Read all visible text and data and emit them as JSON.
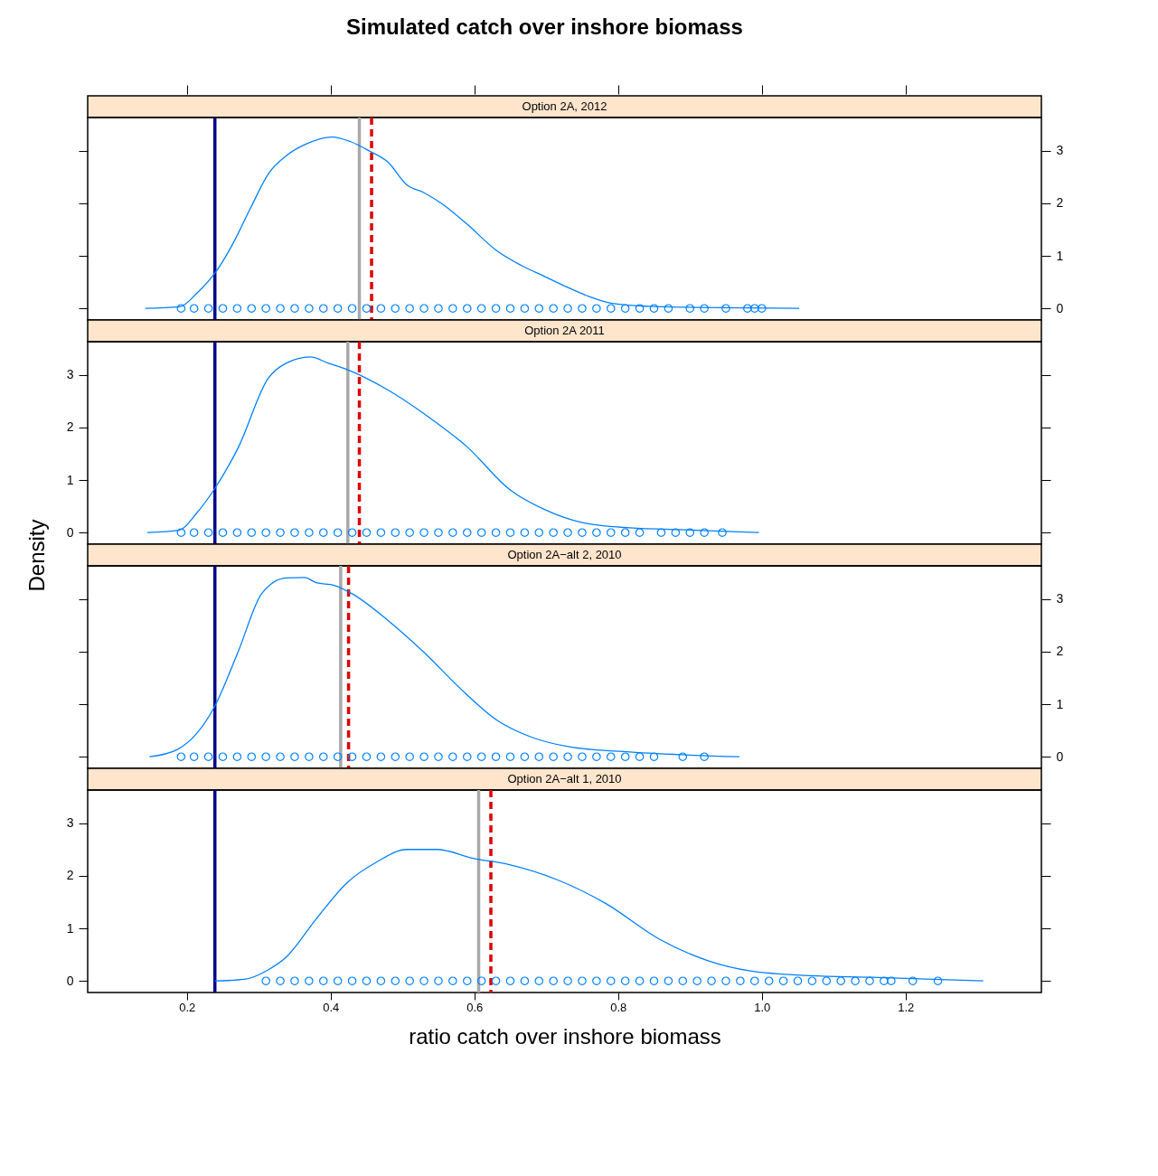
{
  "chart_data": [
    {
      "type": "line",
      "title": "Simulated catch over inshore biomass",
      "subtitle": "Option 2A, 2012",
      "xlim": [
        0.062,
        1.389
      ],
      "ylim": [
        -0.22,
        3.63
      ],
      "xticks": [
        {
          "value": 0.2,
          "label": null
        },
        {
          "value": 0.4,
          "label": null
        },
        {
          "value": 0.6,
          "label": null
        },
        {
          "value": 0.8,
          "label": null
        },
        {
          "value": 1.0,
          "label": null
        },
        {
          "value": 1.2,
          "label": null
        }
      ],
      "yticks": [
        0,
        1,
        2,
        3
      ],
      "tick_labels": "y",
      "series": [
        {
          "type": "line",
          "color": "#0080ff",
          "x": [
            0.142,
            0.19,
            0.214,
            0.239,
            0.264,
            0.289,
            0.314,
            0.34,
            0.365,
            0.402,
            0.428,
            0.453,
            0.48,
            0.506,
            0.53,
            0.556,
            0.59,
            0.631,
            0.665,
            0.699,
            0.73,
            0.757,
            0.79,
            0.843,
            0.906,
            1.052
          ],
          "values": [
            0,
            0.03,
            0.29,
            0.67,
            1.23,
            1.92,
            2.57,
            2.92,
            3.12,
            3.26,
            3.17,
            3.0,
            2.78,
            2.35,
            2.2,
            1.98,
            1.6,
            1.1,
            0.82,
            0.6,
            0.4,
            0.24,
            0.1,
            0.04,
            0.02,
            0
          ]
        },
        {
          "type": "scatter",
          "marker": "circle",
          "color": "#0080ff",
          "x": [
            0.192,
            0.21,
            0.23,
            0.25,
            0.27,
            0.29,
            0.31,
            0.33,
            0.35,
            0.37,
            0.39,
            0.41,
            0.43,
            0.45,
            0.47,
            0.49,
            0.51,
            0.53,
            0.55,
            0.57,
            0.59,
            0.61,
            0.63,
            0.65,
            0.67,
            0.69,
            0.71,
            0.73,
            0.75,
            0.77,
            0.79,
            0.81,
            0.83,
            0.85,
            0.87,
            0.9,
            0.92,
            0.95,
            0.98,
            0.99,
            1.0
          ],
          "values": [
            0,
            0,
            0,
            0,
            0,
            0,
            0,
            0,
            0,
            0,
            0,
            0,
            0,
            0,
            0,
            0,
            0,
            0,
            0,
            0,
            0,
            0,
            0,
            0,
            0,
            0,
            0,
            0,
            0,
            0,
            0,
            0,
            0,
            0,
            0,
            0,
            0,
            0,
            0,
            0,
            0
          ]
        }
      ],
      "ref_lines": [
        {
          "axis": "x",
          "value": 0.239,
          "color": "#00008b",
          "line_style": "solid"
        },
        {
          "axis": "x",
          "value": 0.44,
          "color": "#a9a9a9",
          "line_style": "solid"
        },
        {
          "axis": "x",
          "value": 0.457,
          "color": "#dd0000",
          "line_style": "dashed"
        }
      ]
    },
    {
      "type": "line",
      "subtitle": "Option 2A 2011",
      "ylabel": "Density",
      "xlim": [
        0.062,
        1.389
      ],
      "ylim": [
        -0.22,
        3.63
      ],
      "yticks": [
        0,
        1,
        2,
        3
      ],
      "tick_labels": "y",
      "series": [
        {
          "type": "line",
          "color": "#0080ff",
          "x": [
            0.145,
            0.19,
            0.213,
            0.238,
            0.272,
            0.313,
            0.338,
            0.372,
            0.397,
            0.423,
            0.48,
            0.531,
            0.59,
            0.649,
            0.699,
            0.75,
            0.816,
            0.9,
            0.996
          ],
          "values": [
            0,
            0.05,
            0.36,
            0.82,
            1.63,
            2.93,
            3.22,
            3.34,
            3.22,
            3.1,
            2.71,
            2.25,
            1.63,
            0.82,
            0.43,
            0.19,
            0.09,
            0.05,
            0
          ]
        },
        {
          "type": "scatter",
          "marker": "circle",
          "color": "#0080ff",
          "x": [
            0.192,
            0.21,
            0.23,
            0.25,
            0.27,
            0.29,
            0.31,
            0.33,
            0.35,
            0.37,
            0.39,
            0.41,
            0.43,
            0.45,
            0.47,
            0.49,
            0.51,
            0.53,
            0.55,
            0.57,
            0.59,
            0.61,
            0.63,
            0.65,
            0.67,
            0.69,
            0.71,
            0.73,
            0.75,
            0.77,
            0.79,
            0.81,
            0.83,
            0.86,
            0.88,
            0.9,
            0.92,
            0.945
          ],
          "values": [
            0,
            0,
            0,
            0,
            0,
            0,
            0,
            0,
            0,
            0,
            0,
            0,
            0,
            0,
            0,
            0,
            0,
            0,
            0,
            0,
            0,
            0,
            0,
            0,
            0,
            0,
            0,
            0,
            0,
            0,
            0,
            0,
            0,
            0,
            0,
            0,
            0,
            0
          ]
        }
      ],
      "ref_lines": [
        {
          "axis": "x",
          "value": 0.239,
          "color": "#00008b",
          "line_style": "solid"
        },
        {
          "axis": "x",
          "value": 0.424,
          "color": "#a9a9a9",
          "line_style": "solid"
        },
        {
          "axis": "x",
          "value": 0.44,
          "color": "#dd0000",
          "line_style": "dashed"
        }
      ]
    },
    {
      "type": "line",
      "subtitle": "Option 2A−alt 2, 2010",
      "xlim": [
        0.062,
        1.389
      ],
      "ylim": [
        -0.22,
        3.63
      ],
      "yticks": [
        0,
        1,
        2,
        3
      ],
      "tick_labels": "y",
      "series": [
        {
          "type": "line",
          "color": "#0080ff",
          "x": [
            0.148,
            0.187,
            0.238,
            0.272,
            0.304,
            0.338,
            0.364,
            0.38,
            0.405,
            0.43,
            0.48,
            0.531,
            0.581,
            0.631,
            0.682,
            0.732,
            0.816,
            0.969
          ],
          "values": [
            0,
            0.14,
            0.94,
            2.02,
            3.1,
            3.4,
            3.41,
            3.31,
            3.26,
            3.1,
            2.59,
            1.97,
            1.29,
            0.7,
            0.36,
            0.19,
            0.09,
            0
          ]
        },
        {
          "type": "scatter",
          "marker": "circle",
          "color": "#0080ff",
          "x": [
            0.192,
            0.21,
            0.23,
            0.25,
            0.27,
            0.29,
            0.31,
            0.33,
            0.35,
            0.37,
            0.39,
            0.41,
            0.43,
            0.45,
            0.47,
            0.49,
            0.51,
            0.53,
            0.55,
            0.57,
            0.59,
            0.61,
            0.63,
            0.65,
            0.67,
            0.69,
            0.71,
            0.73,
            0.75,
            0.77,
            0.79,
            0.81,
            0.83,
            0.85,
            0.89,
            0.92
          ],
          "values": [
            0,
            0,
            0,
            0,
            0,
            0,
            0,
            0,
            0,
            0,
            0,
            0,
            0,
            0,
            0,
            0,
            0,
            0,
            0,
            0,
            0,
            0,
            0,
            0,
            0,
            0,
            0,
            0,
            0,
            0,
            0,
            0,
            0,
            0,
            0,
            0
          ]
        }
      ],
      "ref_lines": [
        {
          "axis": "x",
          "value": 0.239,
          "color": "#00008b",
          "line_style": "solid"
        },
        {
          "axis": "x",
          "value": 0.414,
          "color": "#a9a9a9",
          "line_style": "solid"
        },
        {
          "axis": "x",
          "value": 0.425,
          "color": "#dd0000",
          "line_style": "dashed"
        }
      ]
    },
    {
      "type": "line",
      "subtitle": "Option 2A−alt 1, 2010",
      "xlabel": "ratio catch over inshore biomass",
      "xlim": [
        0.062,
        1.389
      ],
      "ylim": [
        -0.22,
        3.63
      ],
      "xticks": [
        0.2,
        0.4,
        0.6,
        {
          "value": 0.8,
          "label": "0.8"
        },
        {
          "value": 1.0,
          "label": "1.0"
        },
        1.2
      ],
      "yticks": [
        0,
        1,
        2,
        3
      ],
      "series": [
        {
          "type": "line",
          "color": "#0080ff",
          "x": [
            0.239,
            0.28,
            0.313,
            0.338,
            0.38,
            0.423,
            0.464,
            0.506,
            0.548,
            0.599,
            0.649,
            0.716,
            0.782,
            0.858,
            0.926,
            0.984,
            1.068,
            1.152,
            1.308
          ],
          "values": [
            0,
            0.03,
            0.21,
            0.45,
            1.18,
            1.87,
            2.26,
            2.5,
            2.5,
            2.33,
            2.21,
            1.92,
            1.48,
            0.79,
            0.38,
            0.19,
            0.1,
            0.07,
            0
          ]
        },
        {
          "type": "scatter",
          "marker": "circle",
          "color": "#0080ff",
          "x": [
            0.31,
            0.33,
            0.35,
            0.37,
            0.39,
            0.41,
            0.43,
            0.45,
            0.47,
            0.49,
            0.51,
            0.53,
            0.55,
            0.57,
            0.59,
            0.61,
            0.63,
            0.65,
            0.67,
            0.69,
            0.71,
            0.73,
            0.75,
            0.77,
            0.79,
            0.81,
            0.83,
            0.85,
            0.87,
            0.89,
            0.91,
            0.93,
            0.95,
            0.97,
            0.99,
            1.01,
            1.03,
            1.05,
            1.07,
            1.09,
            1.11,
            1.13,
            1.15,
            1.17,
            1.18,
            1.21,
            1.245
          ],
          "values": [
            0,
            0,
            0,
            0,
            0,
            0,
            0,
            0,
            0,
            0,
            0,
            0,
            0,
            0,
            0,
            0,
            0,
            0,
            0,
            0,
            0,
            0,
            0,
            0,
            0,
            0,
            0,
            0,
            0,
            0,
            0,
            0,
            0,
            0,
            0,
            0,
            0,
            0,
            0,
            0,
            0,
            0,
            0,
            0,
            0,
            0,
            0
          ]
        }
      ],
      "ref_lines": [
        {
          "axis": "x",
          "value": 0.239,
          "color": "#00008b",
          "line_style": "solid"
        },
        {
          "axis": "x",
          "value": 0.606,
          "color": "#a9a9a9",
          "line_style": "solid"
        },
        {
          "axis": "x",
          "value": 0.623,
          "color": "#dd0000",
          "line_style": "dashed"
        }
      ]
    }
  ]
}
